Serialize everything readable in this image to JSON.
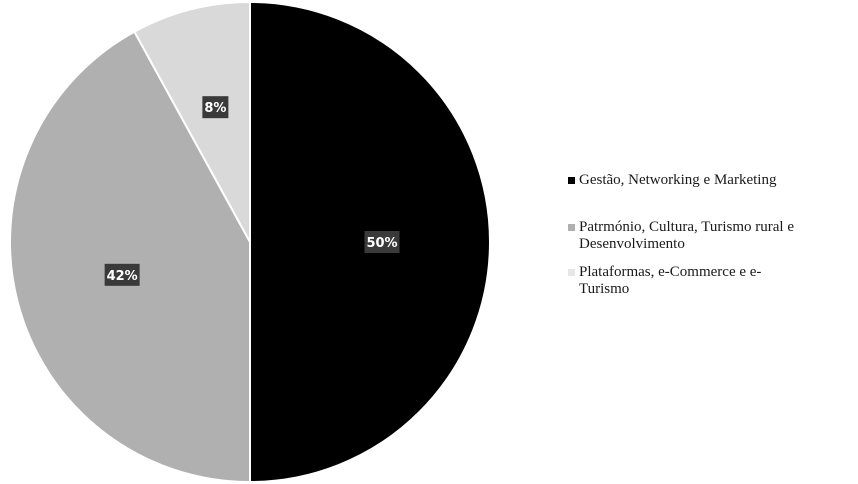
{
  "chart_data": {
    "type": "pie",
    "title": "",
    "slices": [
      {
        "label": "Gestão, Networking e Marketing",
        "value": 50,
        "display": "50%",
        "color": "#000000"
      },
      {
        "label": "Patrmónio, Cultura, Turismo rural e Desenvolvimento",
        "value": 42,
        "display": "42%",
        "color": "#b0b0b0"
      },
      {
        "label": "Plataformas, e-Commerce e e-Turismo",
        "value": 8,
        "display": "8%",
        "color": "#d9d9d9"
      }
    ],
    "start_angle_deg": 0,
    "direction": "clockwise",
    "legend_position": "right",
    "data_label_style": {
      "background": "#3a3a3a",
      "text_color": "#ffffff"
    }
  },
  "legend": {
    "entries": [
      {
        "text": "Gestão, Networking e Marketing"
      },
      {
        "text": "Patrmónio, Cultura, Turismo rural e\nDesenvolvimento"
      },
      {
        "text": "Plataformas, e-Commerce e e-\nTurismo"
      }
    ]
  }
}
